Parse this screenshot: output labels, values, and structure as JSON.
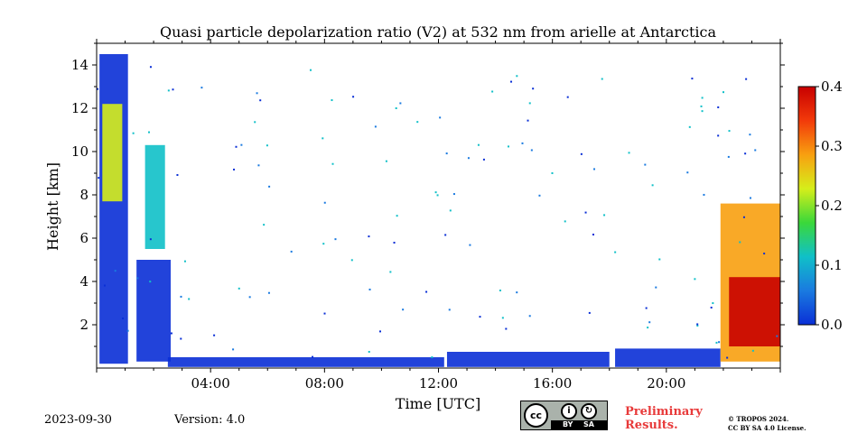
{
  "chart_data": {
    "type": "heatmap",
    "title": "Quasi particle depolarization ratio (V2) at 532 nm from arielle at Antarctica",
    "xlabel": "Time [UTC]",
    "ylabel": "Height [km]",
    "xlim_hours": [
      0,
      24
    ],
    "ylim_km": [
      0,
      15
    ],
    "x_ticks": [
      {
        "hour": 4,
        "label": "04:00"
      },
      {
        "hour": 8,
        "label": "08:00"
      },
      {
        "hour": 12,
        "label": "12:00"
      },
      {
        "hour": 16,
        "label": "16:00"
      },
      {
        "hour": 20,
        "label": "20:00"
      }
    ],
    "y_ticks": [
      {
        "km": 2,
        "label": "2"
      },
      {
        "km": 4,
        "label": "4"
      },
      {
        "km": 6,
        "label": "6"
      },
      {
        "km": 8,
        "label": "8"
      },
      {
        "km": 10,
        "label": "10"
      },
      {
        "km": 12,
        "label": "12"
      },
      {
        "km": 14,
        "label": "14"
      }
    ],
    "colorbar": {
      "min": 0.0,
      "max": 0.4,
      "ticks": [
        {
          "value": 0.0,
          "label": "0.0"
        },
        {
          "value": 0.1,
          "label": "0.1"
        },
        {
          "value": 0.2,
          "label": "0.2"
        },
        {
          "value": 0.3,
          "label": "0.3"
        },
        {
          "value": 0.4,
          "label": "0.4"
        }
      ],
      "colors": [
        "#0a2fd6",
        "#1a7ae0",
        "#10c0c8",
        "#3ad83a",
        "#d6ee1a",
        "#f8a010",
        "#f23a0a",
        "#c80000"
      ]
    },
    "regions": [
      {
        "name": "early-cloud-column",
        "t0": 0.1,
        "t1": 1.1,
        "h0": 0.2,
        "h1": 14.5,
        "value": 0.02
      },
      {
        "name": "early-cloud-top",
        "t0": 0.2,
        "t1": 0.9,
        "h0": 7.7,
        "h1": 12.2,
        "value": 0.2
      },
      {
        "name": "second-plume",
        "t0": 1.4,
        "t1": 2.6,
        "h0": 0.3,
        "h1": 5.0,
        "value": 0.01
      },
      {
        "name": "second-plume-top",
        "t0": 1.7,
        "t1": 2.4,
        "h0": 5.5,
        "h1": 10.3,
        "value": 0.1
      },
      {
        "name": "boundary-layer-morning",
        "t0": 2.5,
        "t1": 12.2,
        "h0": 0.05,
        "h1": 0.5,
        "value": 0.01
      },
      {
        "name": "boundary-layer-midday",
        "t0": 12.3,
        "t1": 18.0,
        "h0": 0.05,
        "h1": 0.75,
        "value": 0.02
      },
      {
        "name": "boundary-layer-evening",
        "t0": 18.2,
        "t1": 21.9,
        "h0": 0.05,
        "h1": 0.9,
        "value": 0.02
      },
      {
        "name": "late-aerosol-layer",
        "t0": 21.9,
        "t1": 24.0,
        "h0": 0.3,
        "h1": 7.6,
        "value": 0.3
      },
      {
        "name": "late-high-depol-core",
        "t0": 22.2,
        "t1": 24.0,
        "h0": 1.0,
        "h1": 4.2,
        "value": 0.38
      }
    ]
  },
  "footer": {
    "date": "2023-09-30",
    "version": "Version: 4.0",
    "badge_cc": "cc",
    "badge_by": "BY",
    "badge_sa": "SA",
    "preliminary_line1": "Preliminary",
    "preliminary_line2": "Results.",
    "copyright_line1": "© TROPOS 2024.",
    "copyright_line2": "CC BY SA 4.0 License."
  }
}
